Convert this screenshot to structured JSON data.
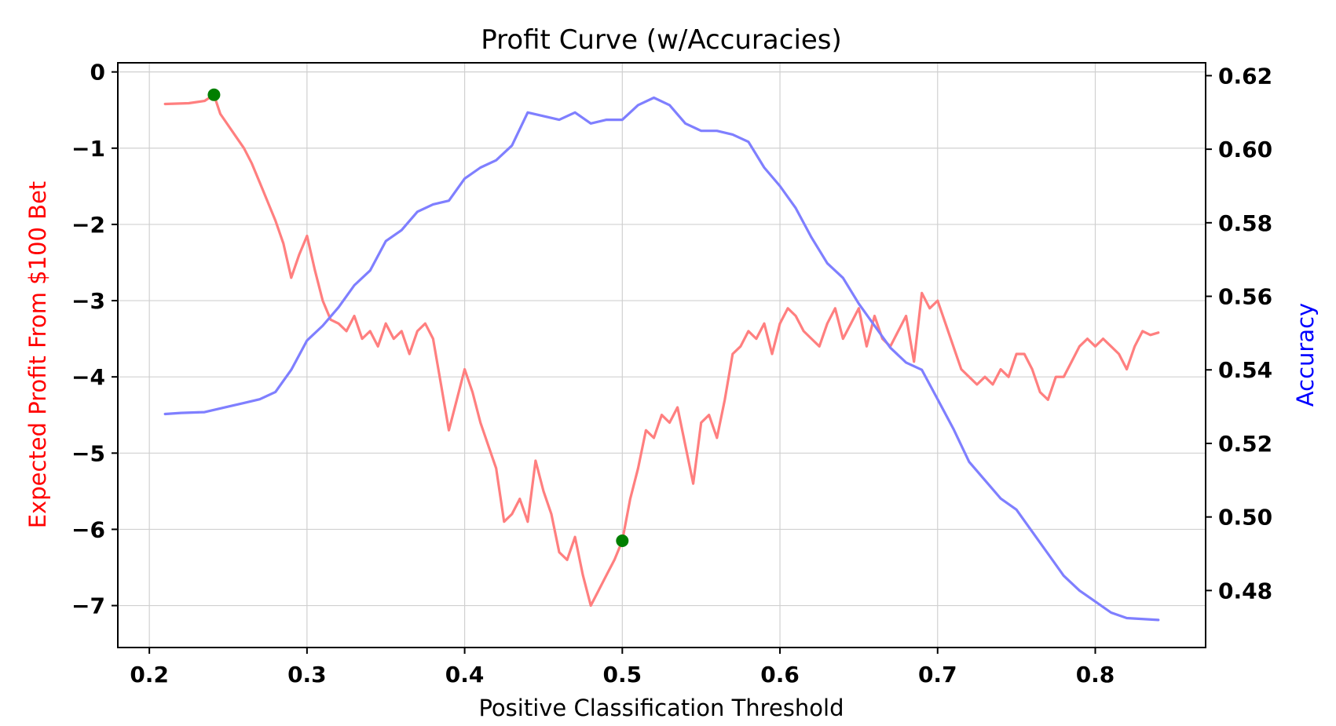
{
  "chart_data": {
    "type": "line",
    "title": "Profit Curve (w/Accuracies)",
    "xlabel": "Positive Classification Threshold",
    "ylabel_left": "Expected Profit From $100 Bet",
    "ylabel_right": "Accuracy",
    "xlim": [
      0.18,
      0.87
    ],
    "ylim_left": [
      -7.55,
      0.12
    ],
    "ylim_right": [
      0.4645,
      0.6235
    ],
    "x_ticks": [
      "0.2",
      "0.3",
      "0.4",
      "0.5",
      "0.6",
      "0.7",
      "0.8"
    ],
    "y_ticks_left": [
      "0",
      "−1",
      "−2",
      "−3",
      "−4",
      "−5",
      "−6",
      "−7"
    ],
    "y_ticks_right": [
      "0.48",
      "0.50",
      "0.52",
      "0.54",
      "0.56",
      "0.58",
      "0.60",
      "0.62"
    ],
    "grid": true,
    "colors": {
      "profit": "#ff7f7f",
      "accuracy": "#7f7fff",
      "markers": "#007f00",
      "left_label": "#ff0000",
      "right_label": "#0000ff"
    },
    "series": [
      {
        "axis": "left",
        "x": [
          0.21,
          0.225,
          0.235,
          0.241,
          0.245,
          0.25,
          0.255,
          0.26,
          0.265,
          0.27,
          0.275,
          0.28,
          0.285,
          0.29,
          0.295,
          0.3,
          0.305,
          0.31,
          0.315,
          0.32,
          0.325,
          0.33,
          0.335,
          0.34,
          0.345,
          0.35,
          0.355,
          0.36,
          0.365,
          0.37,
          0.375,
          0.38,
          0.385,
          0.39,
          0.395,
          0.4,
          0.405,
          0.41,
          0.415,
          0.42,
          0.425,
          0.43,
          0.435,
          0.44,
          0.445,
          0.45,
          0.455,
          0.46,
          0.465,
          0.47,
          0.475,
          0.48,
          0.485,
          0.49,
          0.495,
          0.5,
          0.505,
          0.51,
          0.515,
          0.52,
          0.525,
          0.53,
          0.535,
          0.54,
          0.545,
          0.55,
          0.555,
          0.56,
          0.565,
          0.57,
          0.575,
          0.58,
          0.585,
          0.59,
          0.595,
          0.6,
          0.605,
          0.61,
          0.615,
          0.62,
          0.625,
          0.63,
          0.635,
          0.64,
          0.645,
          0.65,
          0.655,
          0.66,
          0.665,
          0.67,
          0.675,
          0.68,
          0.685,
          0.69,
          0.695,
          0.7,
          0.705,
          0.71,
          0.715,
          0.72,
          0.725,
          0.73,
          0.735,
          0.74,
          0.745,
          0.75,
          0.755,
          0.76,
          0.765,
          0.77,
          0.775,
          0.78,
          0.785,
          0.79,
          0.795,
          0.8,
          0.805,
          0.81,
          0.815,
          0.82,
          0.825,
          0.83,
          0.835,
          0.84
        ],
        "values": [
          -0.42,
          -0.41,
          -0.38,
          -0.3,
          -0.55,
          -0.7,
          -0.85,
          -1.0,
          -1.2,
          -1.45,
          -1.7,
          -1.95,
          -2.25,
          -2.7,
          -2.4,
          -2.15,
          -2.6,
          -3.0,
          -3.25,
          -3.3,
          -3.4,
          -3.2,
          -3.5,
          -3.4,
          -3.6,
          -3.3,
          -3.5,
          -3.4,
          -3.7,
          -3.4,
          -3.3,
          -3.5,
          -4.1,
          -4.7,
          -4.3,
          -3.9,
          -4.2,
          -4.6,
          -4.9,
          -5.2,
          -5.9,
          -5.8,
          -5.6,
          -5.9,
          -5.1,
          -5.5,
          -5.8,
          -6.3,
          -6.4,
          -6.1,
          -6.6,
          -7.0,
          -6.8,
          -6.6,
          -6.4,
          -6.15,
          -5.6,
          -5.2,
          -4.7,
          -4.8,
          -4.5,
          -4.6,
          -4.4,
          -4.9,
          -5.4,
          -4.6,
          -4.5,
          -4.8,
          -4.3,
          -3.7,
          -3.6,
          -3.4,
          -3.5,
          -3.3,
          -3.7,
          -3.3,
          -3.1,
          -3.2,
          -3.4,
          -3.5,
          -3.6,
          -3.3,
          -3.1,
          -3.5,
          -3.3,
          -3.1,
          -3.6,
          -3.2,
          -3.5,
          -3.6,
          -3.4,
          -3.2,
          -3.8,
          -2.9,
          -3.1,
          -3.0,
          -3.3,
          -3.6,
          -3.9,
          -4.0,
          -4.1,
          -4.0,
          -4.1,
          -3.9,
          -4.0,
          -3.7,
          -3.7,
          -3.9,
          -4.2,
          -4.3,
          -4.0,
          -4.0,
          -3.8,
          -3.6,
          -3.5,
          -3.6,
          -3.5,
          -3.6,
          -3.7,
          -3.9,
          -3.6,
          -3.4,
          -3.45,
          -3.42
        ]
      },
      {
        "axis": "right",
        "x": [
          0.21,
          0.22,
          0.235,
          0.25,
          0.26,
          0.27,
          0.28,
          0.29,
          0.3,
          0.31,
          0.32,
          0.33,
          0.34,
          0.35,
          0.36,
          0.37,
          0.38,
          0.39,
          0.4,
          0.41,
          0.42,
          0.43,
          0.44,
          0.45,
          0.46,
          0.47,
          0.48,
          0.49,
          0.5,
          0.51,
          0.52,
          0.53,
          0.54,
          0.55,
          0.56,
          0.57,
          0.58,
          0.59,
          0.6,
          0.61,
          0.62,
          0.63,
          0.64,
          0.65,
          0.66,
          0.67,
          0.68,
          0.69,
          0.7,
          0.71,
          0.72,
          0.73,
          0.74,
          0.75,
          0.76,
          0.77,
          0.78,
          0.79,
          0.8,
          0.81,
          0.82,
          0.84
        ],
        "values": [
          0.528,
          0.5283,
          0.5285,
          0.53,
          0.531,
          0.532,
          0.534,
          0.54,
          0.548,
          0.552,
          0.557,
          0.563,
          0.567,
          0.575,
          0.578,
          0.583,
          0.585,
          0.586,
          0.592,
          0.595,
          0.597,
          0.601,
          0.61,
          0.609,
          0.608,
          0.61,
          0.607,
          0.608,
          0.608,
          0.612,
          0.614,
          0.612,
          0.607,
          0.605,
          0.605,
          0.604,
          0.602,
          0.595,
          0.59,
          0.584,
          0.576,
          0.569,
          0.565,
          0.558,
          0.552,
          0.546,
          0.542,
          0.54,
          0.532,
          0.524,
          0.515,
          0.51,
          0.505,
          0.502,
          0.496,
          0.49,
          0.484,
          0.48,
          0.477,
          0.474,
          0.4725,
          0.472
        ]
      }
    ],
    "markers": [
      {
        "axis": "left",
        "x": 0.241,
        "y": -0.3
      },
      {
        "axis": "left",
        "x": 0.5,
        "y": -6.15
      }
    ]
  }
}
